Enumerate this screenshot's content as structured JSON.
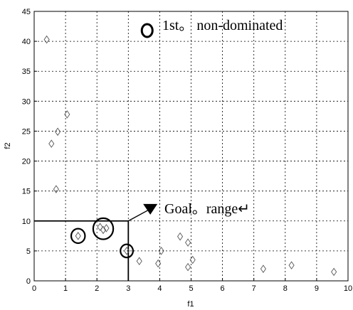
{
  "chart_data": {
    "type": "scatter",
    "title": "",
    "xlabel": "f1",
    "ylabel": "f2",
    "xlim": [
      0,
      10
    ],
    "ylim": [
      0,
      45
    ],
    "xticks": [
      0,
      1,
      2,
      3,
      4,
      5,
      6,
      7,
      8,
      9,
      10
    ],
    "yticks": [
      0,
      5,
      10,
      15,
      20,
      25,
      30,
      35,
      40,
      45
    ],
    "grid": true,
    "points": [
      {
        "x": 0.4,
        "y": 40.3
      },
      {
        "x": 1.05,
        "y": 27.8
      },
      {
        "x": 0.75,
        "y": 24.9
      },
      {
        "x": 0.55,
        "y": 22.9
      },
      {
        "x": 0.7,
        "y": 15.3
      },
      {
        "x": 1.4,
        "y": 7.5
      },
      {
        "x": 2.1,
        "y": 9.0
      },
      {
        "x": 2.3,
        "y": 8.8
      },
      {
        "x": 2.2,
        "y": 8.5
      },
      {
        "x": 2.95,
        "y": 5.0
      },
      {
        "x": 3.35,
        "y": 3.3
      },
      {
        "x": 4.05,
        "y": 5.0
      },
      {
        "x": 3.95,
        "y": 2.9
      },
      {
        "x": 4.65,
        "y": 7.4
      },
      {
        "x": 4.9,
        "y": 6.4
      },
      {
        "x": 4.9,
        "y": 2.3
      },
      {
        "x": 5.05,
        "y": 3.5
      },
      {
        "x": 7.3,
        "y": 2.0
      },
      {
        "x": 8.2,
        "y": 2.6
      },
      {
        "x": 9.55,
        "y": 1.5
      }
    ],
    "non_dominated": [
      {
        "x": 1.4,
        "y": 7.5,
        "r": 0.22
      },
      {
        "x": 2.2,
        "y": 8.7,
        "r": 0.32
      },
      {
        "x": 2.95,
        "y": 5.0,
        "r": 0.2
      }
    ],
    "legend_marker": {
      "x": 3.6,
      "y": 41.8
    },
    "goal_box": {
      "x0": 0,
      "x1": 3,
      "y0": 0,
      "y1": 10
    },
    "goal_arrow": {
      "from": [
        3.7,
        12.0
      ],
      "to": [
        3.0,
        10.0
      ]
    },
    "annotations": {
      "legend": "1st。 non-dominated",
      "goal": "Goal。range↵"
    },
    "colors": {
      "axis": "#000000",
      "grid": "#000000",
      "mark_symbol": "#3a6fb0"
    }
  }
}
